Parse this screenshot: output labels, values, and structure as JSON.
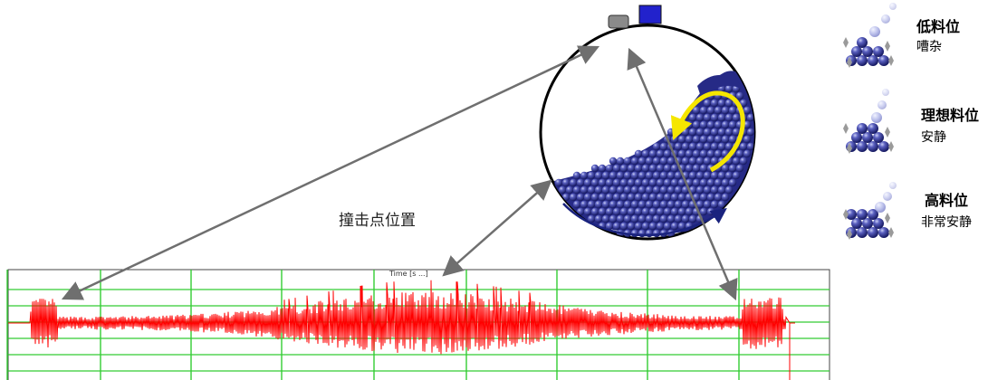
{
  "caption": "撞击点位置",
  "signal_label": "Time [s ...]",
  "colors": {
    "signal": "#ff0000",
    "grid": "#33cc33",
    "ball": "#2b2f8c",
    "rotation_arrow": "#1a237e",
    "flow_arrow": "#f5e600",
    "pointer": "#6f6f6f",
    "sensor": "#2222cc"
  },
  "legend": [
    {
      "title": "低料位",
      "desc": "嘈杂"
    },
    {
      "title": "理想料位",
      "desc": "安静"
    },
    {
      "title": "高料位",
      "desc": "非常安静"
    }
  ]
}
